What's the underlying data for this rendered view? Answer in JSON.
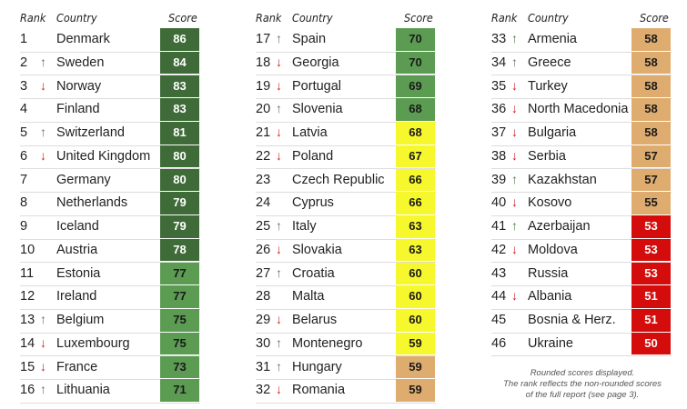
{
  "headers": {
    "rank": "Rank",
    "country": "Country",
    "score": "Score"
  },
  "tier_colors": {
    "dark_green": {
      "bg": "#3e6b37",
      "fg": "#ffffff"
    },
    "green": {
      "bg": "#5b9c52",
      "fg": "#1a1a1a"
    },
    "yellow": {
      "bg": "#f7f72e",
      "fg": "#1a1a1a"
    },
    "tan": {
      "bg": "#dfac6f",
      "fg": "#1a1a1a"
    },
    "red": {
      "bg": "#d40c0c",
      "fg": "#ffffff"
    }
  },
  "note": [
    "Rounded scores displayed.",
    "The rank reflects the non-rounded scores",
    "of the full report (see page 3)."
  ],
  "chart_data": {
    "type": "table",
    "columns": [
      "Rank",
      "Country",
      "Score"
    ],
    "rows": [
      {
        "rank": "1",
        "trend": "",
        "country": "Denmark",
        "score": "86",
        "tier": "dark_green"
      },
      {
        "rank": "2",
        "trend": "up",
        "country": "Sweden",
        "score": "84",
        "tier": "dark_green"
      },
      {
        "rank": "3",
        "trend": "down",
        "country": "Norway",
        "score": "83",
        "tier": "dark_green"
      },
      {
        "rank": "4",
        "trend": "",
        "country": "Finland",
        "score": "83",
        "tier": "dark_green"
      },
      {
        "rank": "5",
        "trend": "up",
        "country": "Switzerland",
        "score": "81",
        "tier": "dark_green"
      },
      {
        "rank": "6",
        "trend": "down",
        "country": "United Kingdom",
        "score": "80",
        "tier": "dark_green"
      },
      {
        "rank": "7",
        "trend": "",
        "country": "Germany",
        "score": "80",
        "tier": "dark_green"
      },
      {
        "rank": "8",
        "trend": "",
        "country": "Netherlands",
        "score": "79",
        "tier": "dark_green"
      },
      {
        "rank": "9",
        "trend": "",
        "country": "Iceland",
        "score": "79",
        "tier": "dark_green"
      },
      {
        "rank": "10",
        "trend": "",
        "country": "Austria",
        "score": "78",
        "tier": "dark_green"
      },
      {
        "rank": "11",
        "trend": "",
        "country": "Estonia",
        "score": "77",
        "tier": "green"
      },
      {
        "rank": "12",
        "trend": "",
        "country": "Ireland",
        "score": "77",
        "tier": "green"
      },
      {
        "rank": "13",
        "trend": "up",
        "country": "Belgium",
        "score": "75",
        "tier": "green"
      },
      {
        "rank": "14",
        "trend": "down",
        "country": "Luxembourg",
        "score": "75",
        "tier": "green"
      },
      {
        "rank": "15",
        "trend": "down",
        "country": "France",
        "score": "73",
        "tier": "green"
      },
      {
        "rank": "16",
        "trend": "up",
        "country": "Lithuania",
        "score": "71",
        "tier": "green"
      },
      {
        "rank": "17",
        "trend": "up",
        "country": "Spain",
        "score": "70",
        "tier": "green"
      },
      {
        "rank": "18",
        "trend": "down",
        "country": "Georgia",
        "score": "70",
        "tier": "green"
      },
      {
        "rank": "19",
        "trend": "down",
        "country": "Portugal",
        "score": "69",
        "tier": "green"
      },
      {
        "rank": "20",
        "trend": "up",
        "country": "Slovenia",
        "score": "68",
        "tier": "green"
      },
      {
        "rank": "21",
        "trend": "down",
        "country": "Latvia",
        "score": "68",
        "tier": "yellow"
      },
      {
        "rank": "22",
        "trend": "down",
        "country": "Poland",
        "score": "67",
        "tier": "yellow"
      },
      {
        "rank": "23",
        "trend": "",
        "country": "Czech Republic",
        "score": "66",
        "tier": "yellow"
      },
      {
        "rank": "24",
        "trend": "",
        "country": "Cyprus",
        "score": "66",
        "tier": "yellow"
      },
      {
        "rank": "25",
        "trend": "up",
        "country": "Italy",
        "score": "63",
        "tier": "yellow"
      },
      {
        "rank": "26",
        "trend": "down",
        "country": "Slovakia",
        "score": "63",
        "tier": "yellow"
      },
      {
        "rank": "27",
        "trend": "up",
        "country": "Croatia",
        "score": "60",
        "tier": "yellow"
      },
      {
        "rank": "28",
        "trend": "",
        "country": "Malta",
        "score": "60",
        "tier": "yellow"
      },
      {
        "rank": "29",
        "trend": "down",
        "country": "Belarus",
        "score": "60",
        "tier": "yellow"
      },
      {
        "rank": "30",
        "trend": "up",
        "country": "Montenegro",
        "score": "59",
        "tier": "yellow"
      },
      {
        "rank": "31",
        "trend": "up",
        "country": "Hungary",
        "score": "59",
        "tier": "tan"
      },
      {
        "rank": "32",
        "trend": "down",
        "country": "Romania",
        "score": "59",
        "tier": "tan"
      },
      {
        "rank": "33",
        "trend": "up",
        "country": "Armenia",
        "score": "58",
        "tier": "tan"
      },
      {
        "rank": "34",
        "trend": "up",
        "country": "Greece",
        "score": "58",
        "tier": "tan"
      },
      {
        "rank": "35",
        "trend": "down",
        "country": "Turkey",
        "score": "58",
        "tier": "tan"
      },
      {
        "rank": "36",
        "trend": "down",
        "country": "North Macedonia",
        "score": "58",
        "tier": "tan"
      },
      {
        "rank": "37",
        "trend": "down",
        "country": "Bulgaria",
        "score": "58",
        "tier": "tan"
      },
      {
        "rank": "38",
        "trend": "down",
        "country": "Serbia",
        "score": "57",
        "tier": "tan"
      },
      {
        "rank": "39",
        "trend": "up",
        "country": "Kazakhstan",
        "score": "57",
        "tier": "tan"
      },
      {
        "rank": "40",
        "trend": "down",
        "country": "Kosovo",
        "score": "55",
        "tier": "tan"
      },
      {
        "rank": "41",
        "trend": "up",
        "country": "Azerbaijan",
        "score": "53",
        "tier": "red"
      },
      {
        "rank": "42",
        "trend": "down",
        "country": "Moldova",
        "score": "53",
        "tier": "red"
      },
      {
        "rank": "43",
        "trend": "",
        "country": "Russia",
        "score": "53",
        "tier": "red"
      },
      {
        "rank": "44",
        "trend": "down",
        "country": "Albania",
        "score": "51",
        "tier": "red"
      },
      {
        "rank": "45",
        "trend": "",
        "country": "Bosnia & Herz.",
        "score": "51",
        "tier": "red"
      },
      {
        "rank": "46",
        "trend": "",
        "country": "Ukraine",
        "score": "50",
        "tier": "red"
      }
    ]
  }
}
